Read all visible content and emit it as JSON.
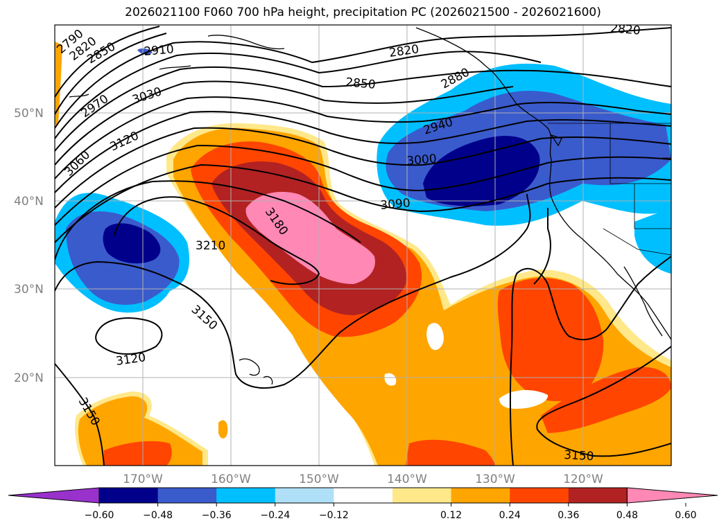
{
  "title": "2026021100 F060 700 hPa height, precipitation PC (2026021500 - 2026021600)",
  "latitude_labels": [
    "50°N",
    "40°N",
    "30°N",
    "20°N"
  ],
  "longitude_labels": [
    "170°W",
    "160°W",
    "150°W",
    "140°W",
    "130°W",
    "120°W"
  ],
  "colorbar": {
    "tick_labels": [
      "−0.60",
      "−0.48",
      "−0.36",
      "−0.24",
      "−0.12",
      "0.12",
      "0.24",
      "0.36",
      "0.48",
      "0.60"
    ],
    "colors": [
      "#9932cc",
      "#00008b",
      "#3a5bcc",
      "#00bfff",
      "#b0e0f8",
      "#ffffff",
      "#ffe88a",
      "#ffa500",
      "#ff4500",
      "#b22222",
      "#ff88b4"
    ]
  },
  "contour_labels": [
    "2790",
    "2820",
    "2850",
    "2910",
    "3030",
    "2970",
    "3120",
    "3060",
    "2820",
    "2850",
    "2880",
    "2820",
    "2940",
    "3000",
    "3090",
    "3180",
    "3210",
    "3150",
    "3120",
    "3150",
    "3150"
  ],
  "colors": {
    "contour": "#000000",
    "grid": "#b0b0b0",
    "coast": "#000000"
  }
}
